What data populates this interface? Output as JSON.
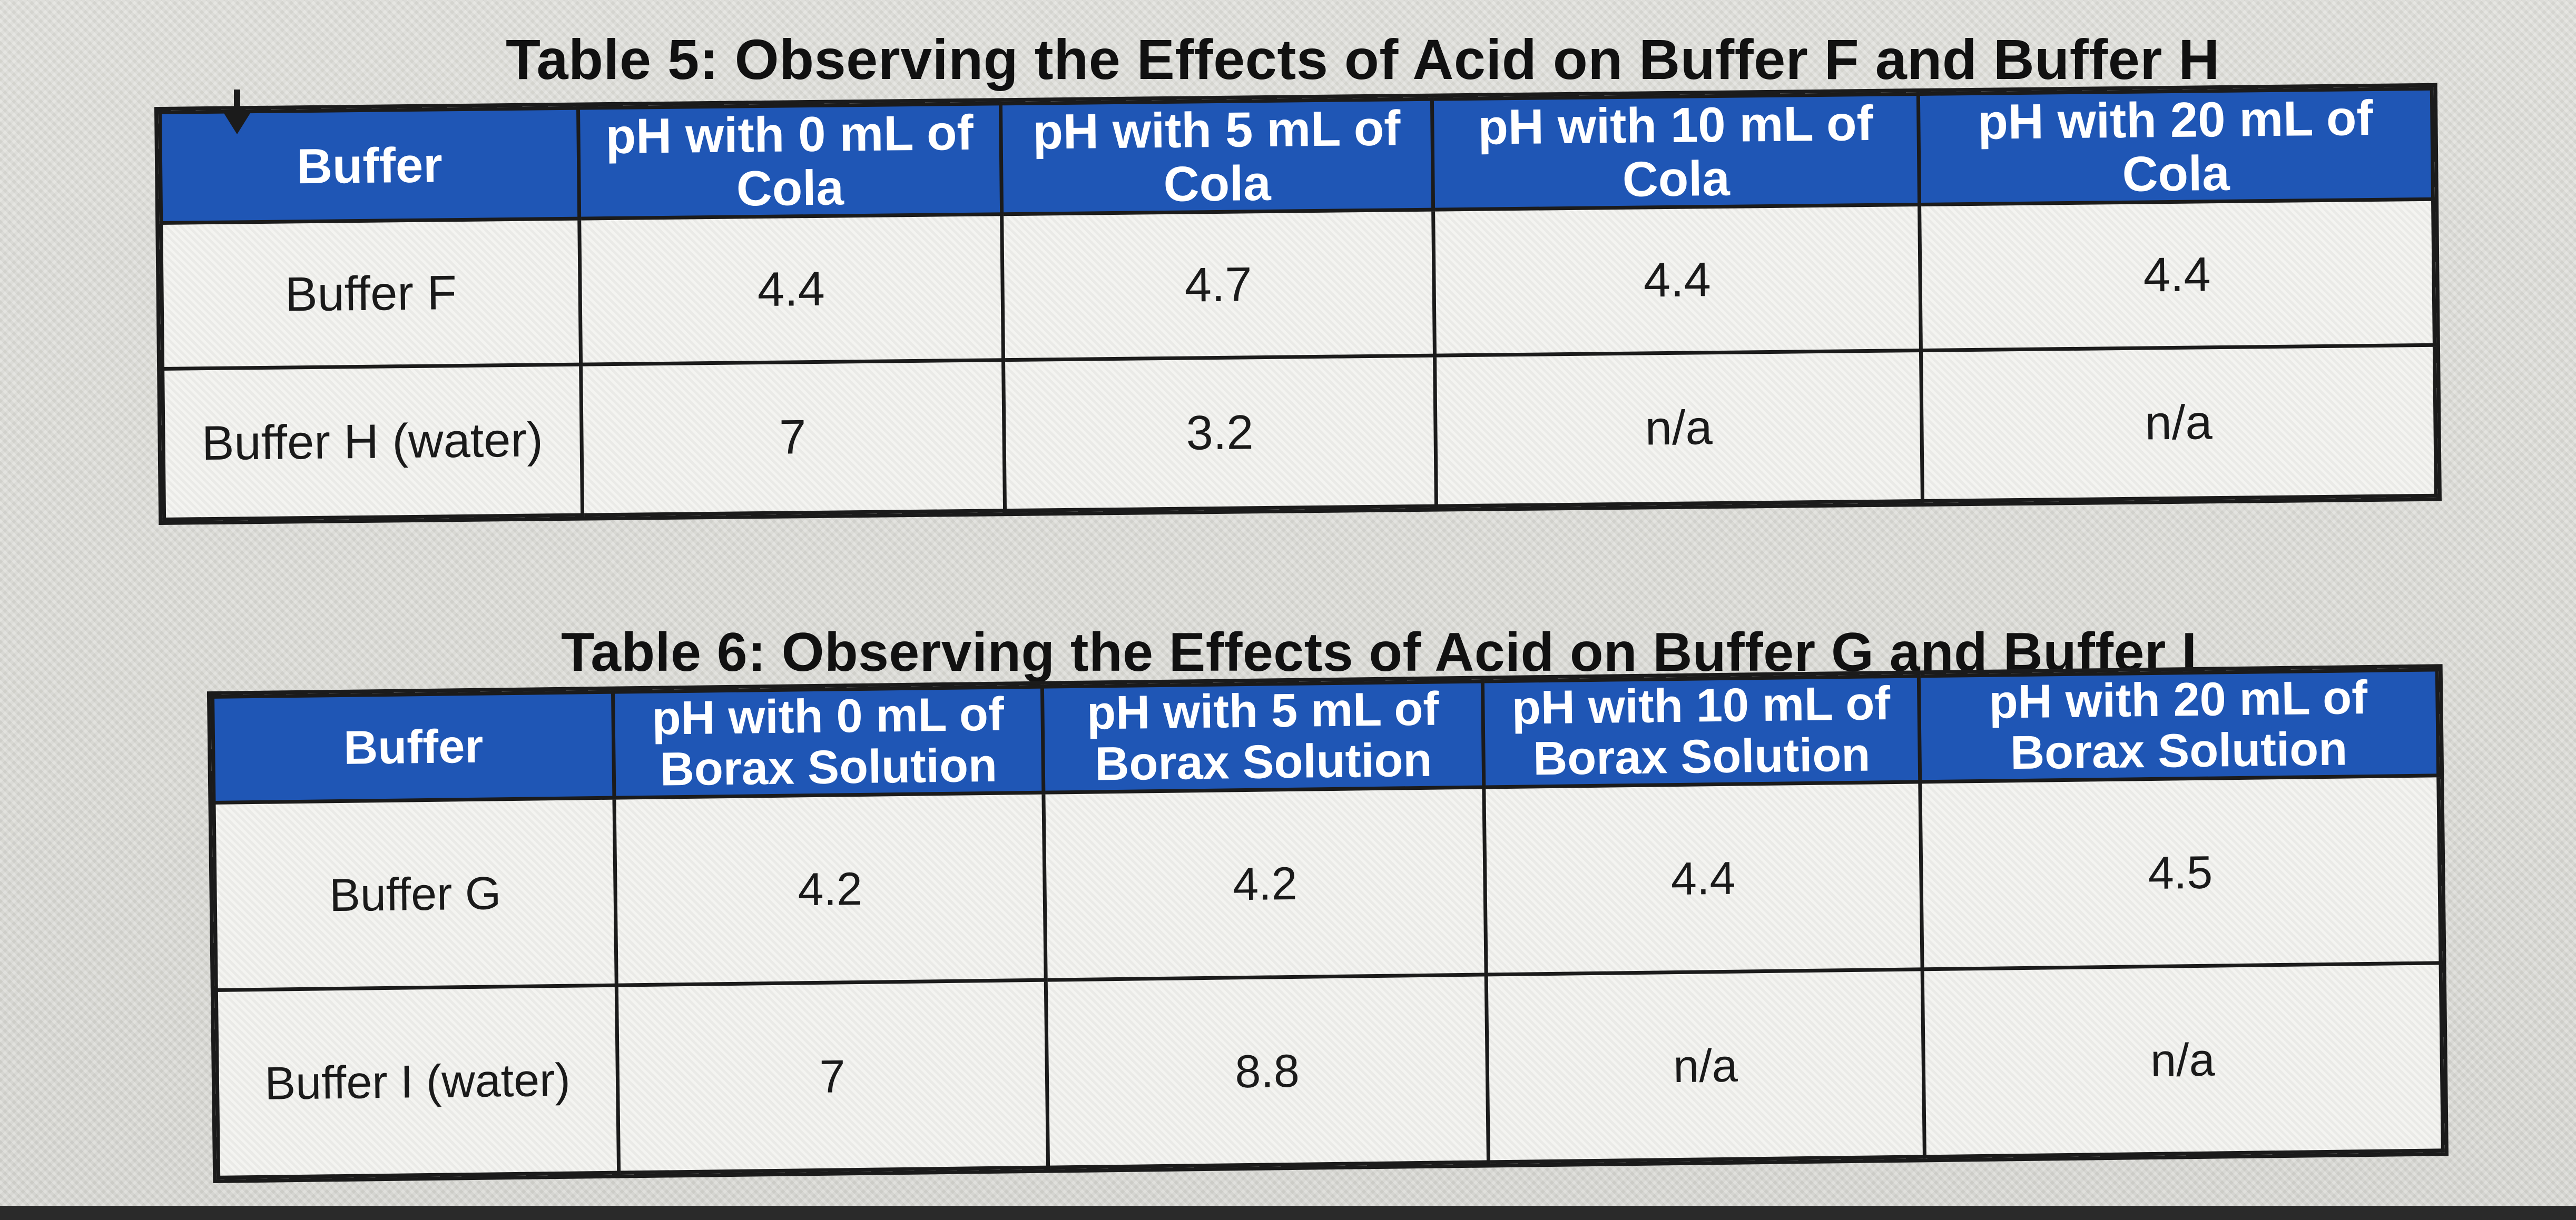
{
  "table5": {
    "title": "Table 5: Observing the Effects of Acid on Buffer F and Buffer H",
    "headers": [
      "Buffer",
      "pH with 0 mL of Cola",
      "pH with 5 mL of Cola",
      "pH with 10 mL of Cola",
      "pH with 20 mL of Cola"
    ],
    "rows": [
      [
        "Buffer F",
        "4.4",
        "4.7",
        "4.4",
        "4.4"
      ],
      [
        "Buffer H (water)",
        "7",
        "3.2",
        "n/a",
        "n/a"
      ]
    ]
  },
  "table6": {
    "title": "Table 6: Observing the Effects of Acid on Buffer G and Buffer I",
    "headers": [
      "Buffer",
      "pH with 0 mL of Borax Solution",
      "pH with 5 mL of Borax Solution",
      "pH with 10 mL of Borax Solution",
      "pH with 20 mL of Borax Solution"
    ],
    "rows": [
      [
        "Buffer G",
        "4.2",
        "4.2",
        "4.4",
        "4.5"
      ],
      [
        "Buffer I (water)",
        "7",
        "8.8",
        "n/a",
        "n/a"
      ]
    ]
  },
  "icons": {
    "sort_arrow": "arrow-down-icon"
  },
  "colors": {
    "header_bg": "#1f56b5",
    "header_text": "#ffffff",
    "border": "#1b1b1b"
  }
}
